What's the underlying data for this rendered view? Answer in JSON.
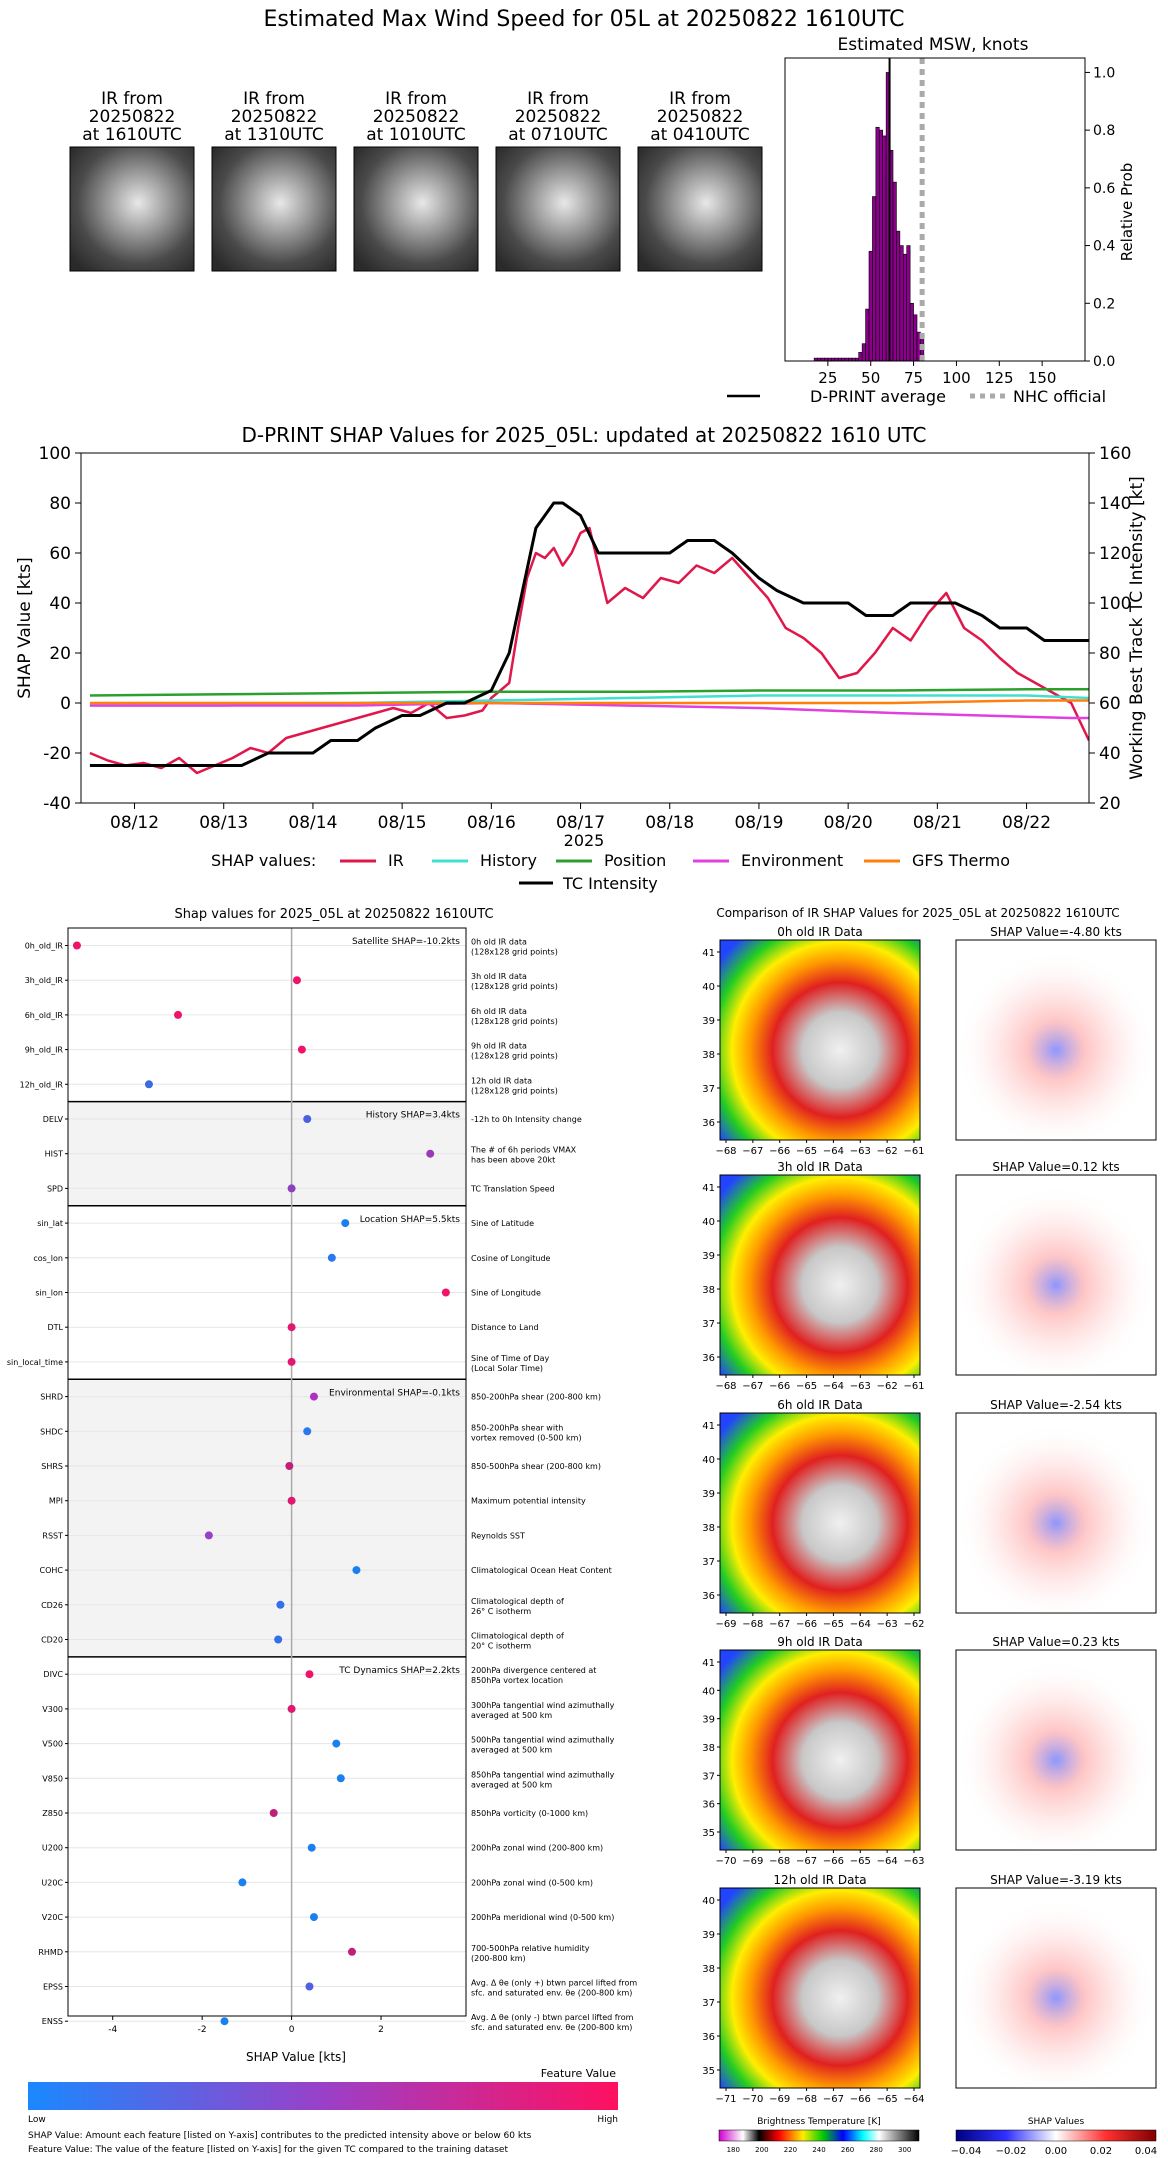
{
  "header": {
    "title": "Estimated Max Wind Speed for 05L at 20250822 1610UTC"
  },
  "ir_thumbnails": [
    {
      "line1": "IR from",
      "line2": "20250822",
      "line3": "at 1610UTC"
    },
    {
      "line1": "IR from",
      "line2": "20250822",
      "line3": "at 1310UTC"
    },
    {
      "line1": "IR from",
      "line2": "20250822",
      "line3": "at 1010UTC"
    },
    {
      "line1": "IR from",
      "line2": "20250822",
      "line3": "at 0710UTC"
    },
    {
      "line1": "IR from",
      "line2": "20250822",
      "line3": "at 0410UTC"
    }
  ],
  "chart_data": [
    {
      "type": "bar",
      "title": "Estimated MSW, knots",
      "ylabel": "Relative Prob",
      "xlim": [
        0,
        175
      ],
      "ylim": [
        0,
        1.05
      ],
      "xticks": [
        "25",
        "50",
        "75",
        "100",
        "125",
        "150"
      ],
      "yticks": [
        "0.0",
        "0.2",
        "0.4",
        "0.6",
        "0.8",
        "1.0"
      ],
      "bin_width": 2,
      "bins_x": [
        18,
        20,
        22,
        24,
        26,
        28,
        30,
        32,
        34,
        36,
        38,
        40,
        42,
        44,
        46,
        48,
        50,
        52,
        54,
        56,
        58,
        60,
        62,
        64,
        66,
        68,
        70,
        72,
        74,
        76,
        78,
        80
      ],
      "bins_y": [
        0.01,
        0.01,
        0.01,
        0.01,
        0.01,
        0.01,
        0.01,
        0.01,
        0.01,
        0.01,
        0.01,
        0.01,
        0.01,
        0.03,
        0.06,
        0.18,
        0.38,
        0.57,
        0.81,
        0.8,
        0.78,
        1.0,
        0.73,
        0.62,
        0.45,
        0.4,
        0.37,
        0.4,
        0.2,
        0.16,
        0.1,
        0.09
      ],
      "dprint_average": 61,
      "nhc_official": 80,
      "legend": [
        "D-PRINT average",
        "NHC official"
      ],
      "colors": {
        "bars": "#8b008b",
        "average": "#000000",
        "nhc": "#aaaaaa"
      }
    },
    {
      "type": "line",
      "title": "D-PRINT SHAP Values for 2025_05L: updated at 20250822 1610 UTC",
      "xlabel": "2025",
      "ylabel": "SHAP Value [kts]",
      "y2label": "Working Best Track TC Intensity [kt]",
      "ylim": [
        -40,
        100
      ],
      "y2lim": [
        20,
        160
      ],
      "xlim": [
        11.4,
        22.7
      ],
      "xticks": [
        "08/12",
        "08/13",
        "08/14",
        "08/15",
        "08/16",
        "08/17",
        "08/18",
        "08/19",
        "08/20",
        "08/21",
        "08/22"
      ],
      "yticks": [
        "-40",
        "-20",
        "0",
        "20",
        "40",
        "60",
        "80",
        "100"
      ],
      "y2ticks": [
        "20",
        "40",
        "60",
        "80",
        "100",
        "120",
        "140",
        "160"
      ],
      "legend_prefix": "SHAP values:",
      "series": [
        {
          "name": "IR",
          "color": "#e0174a",
          "x": [
            11.5,
            11.7,
            11.9,
            12.1,
            12.3,
            12.5,
            12.7,
            12.9,
            13.1,
            13.3,
            13.5,
            13.7,
            13.9,
            14.1,
            14.3,
            14.5,
            14.7,
            14.9,
            15.1,
            15.3,
            15.5,
            15.7,
            15.9,
            16.0,
            16.1,
            16.2,
            16.3,
            16.4,
            16.5,
            16.6,
            16.7,
            16.8,
            16.9,
            17.0,
            17.1,
            17.2,
            17.3,
            17.5,
            17.7,
            17.9,
            18.1,
            18.3,
            18.5,
            18.7,
            18.9,
            19.1,
            19.3,
            19.5,
            19.7,
            19.9,
            20.1,
            20.3,
            20.5,
            20.7,
            20.9,
            21.1,
            21.3,
            21.5,
            21.7,
            21.9,
            22.1,
            22.3,
            22.5,
            22.7
          ],
          "y": [
            -20,
            -23,
            -25,
            -24,
            -26,
            -22,
            -28,
            -25,
            -22,
            -18,
            -20,
            -14,
            -12,
            -10,
            -8,
            -6,
            -4,
            -2,
            -4,
            0,
            -6,
            -5,
            -3,
            2,
            5,
            8,
            30,
            50,
            60,
            58,
            62,
            55,
            60,
            68,
            70,
            55,
            40,
            46,
            42,
            50,
            48,
            55,
            52,
            58,
            50,
            42,
            30,
            26,
            20,
            10,
            12,
            20,
            30,
            25,
            36,
            44,
            30,
            25,
            18,
            12,
            8,
            4,
            0,
            -15
          ]
        },
        {
          "name": "History",
          "color": "#40e0d0",
          "x": [
            11.5,
            13,
            14.5,
            16,
            17.5,
            19,
            20.5,
            22,
            22.7
          ],
          "y": [
            -1,
            -1,
            0,
            1,
            2,
            3,
            3,
            3,
            2
          ]
        },
        {
          "name": "Position",
          "color": "#2ca02c",
          "x": [
            11.5,
            13,
            14.5,
            16,
            17.5,
            19,
            20.5,
            22,
            22.7
          ],
          "y": [
            3,
            3.5,
            4,
            4.5,
            4.5,
            5,
            5,
            5.5,
            5.5
          ]
        },
        {
          "name": "Environment",
          "color": "#e040e0",
          "x": [
            11.5,
            13,
            14.5,
            16,
            17.5,
            19,
            20.5,
            21.5,
            22.5,
            22.7
          ],
          "y": [
            -1,
            -1,
            -1,
            0,
            -1,
            -2,
            -4,
            -5,
            -6,
            -6
          ]
        },
        {
          "name": "GFS Thermo",
          "color": "#ff7f0e",
          "x": [
            11.5,
            13,
            14.5,
            16,
            17.5,
            19,
            20.5,
            22,
            22.7
          ],
          "y": [
            0,
            0,
            0,
            0,
            0,
            0,
            0,
            1,
            1
          ]
        },
        {
          "name": "TC Intensity",
          "color": "#000000",
          "axis": "y2",
          "x": [
            11.5,
            12,
            12.5,
            13,
            13.2,
            13.5,
            14,
            14.2,
            14.5,
            14.7,
            15,
            15.2,
            15.5,
            15.7,
            16,
            16.2,
            16.5,
            16.7,
            16.8,
            17,
            17.2,
            17.5,
            17.7,
            18,
            18.2,
            18.5,
            18.7,
            19,
            19.2,
            19.5,
            19.7,
            20,
            20.2,
            20.5,
            20.7,
            21,
            21.2,
            21.5,
            21.7,
            22,
            22.2,
            22.5,
            22.7
          ],
          "y": [
            35,
            35,
            35,
            35,
            35,
            40,
            40,
            45,
            45,
            50,
            55,
            55,
            60,
            60,
            65,
            80,
            130,
            140,
            140,
            135,
            120,
            120,
            120,
            120,
            125,
            125,
            120,
            110,
            105,
            100,
            100,
            100,
            95,
            95,
            100,
            100,
            100,
            95,
            90,
            90,
            85,
            85,
            85
          ]
        }
      ]
    },
    {
      "type": "scatter",
      "title": "Shap values for 2025_05L at 20250822 1610UTC",
      "xlabel": "SHAP Value [kts]",
      "xlim": [
        -5,
        3.9
      ],
      "xticks": [
        "-4",
        "-2",
        "0",
        "2"
      ],
      "groups": [
        {
          "label": "Satellite SHAP=-10.2kts",
          "features": [
            "0h_old_IR",
            "3h_old_IR",
            "6h_old_IR",
            "9h_old_IR",
            "12h_old_IR"
          ]
        },
        {
          "label": "History SHAP=3.4kts",
          "features": [
            "DELV",
            "HIST",
            "SPD"
          ]
        },
        {
          "label": "Location SHAP=5.5kts",
          "features": [
            "sin_lat",
            "cos_lon",
            "sin_lon",
            "DTL",
            "sin_local_time"
          ]
        },
        {
          "label": "Environmental SHAP=-0.1kts",
          "features": [
            "SHRD",
            "SHDC",
            "SHRS",
            "MPI",
            "RSST",
            "COHC",
            "CD26",
            "CD20"
          ]
        },
        {
          "label": "TC Dynamics SHAP=2.2kts",
          "features": [
            "DIVC",
            "V300",
            "V500",
            "V850",
            "Z850",
            "U200",
            "U20C",
            "V20C",
            "RHMD",
            "EPSS",
            "ENSS"
          ]
        }
      ],
      "points": [
        {
          "feature": "0h_old_IR",
          "shap": -4.8,
          "color": "#f0136a",
          "desc": [
            "0h old IR data",
            "(128x128 grid points)"
          ]
        },
        {
          "feature": "3h_old_IR",
          "shap": 0.12,
          "color": "#f0136a",
          "desc": [
            "3h old IR data",
            "(128x128 grid points)"
          ]
        },
        {
          "feature": "6h_old_IR",
          "shap": -2.54,
          "color": "#f0136a",
          "desc": [
            "6h old IR data",
            "(128x128 grid points)"
          ]
        },
        {
          "feature": "9h_old_IR",
          "shap": 0.23,
          "color": "#f0136a",
          "desc": [
            "9h old IR data",
            "(128x128 grid points)"
          ]
        },
        {
          "feature": "12h_old_IR",
          "shap": -3.19,
          "color": "#3a6be0",
          "desc": [
            "12h old IR data",
            "(128x128 grid points)"
          ]
        },
        {
          "feature": "DELV",
          "shap": 0.35,
          "color": "#4a60e0",
          "desc": [
            "-12h to 0h Intensity change"
          ]
        },
        {
          "feature": "HIST",
          "shap": 3.1,
          "color": "#9a3ab8",
          "desc": [
            "The # of 6h periods VMAX",
            "has been above 20kt"
          ]
        },
        {
          "feature": "SPD",
          "shap": 0.0,
          "color": "#8a40c0",
          "desc": [
            "TC Translation Speed"
          ]
        },
        {
          "feature": "sin_lat",
          "shap": 1.2,
          "color": "#1a80f0",
          "desc": [
            "Sine of Latitude"
          ]
        },
        {
          "feature": "cos_lon",
          "shap": 0.9,
          "color": "#2a78ee",
          "desc": [
            "Cosine of Longitude"
          ]
        },
        {
          "feature": "sin_lon",
          "shap": 3.45,
          "color": "#f0136a",
          "desc": [
            "Sine of Longitude"
          ]
        },
        {
          "feature": "DTL",
          "shap": 0.0,
          "color": "#e01870",
          "desc": [
            "Distance to Land"
          ]
        },
        {
          "feature": "sin_local_time",
          "shap": 0.0,
          "color": "#e01870",
          "desc": [
            "Sine of Time of Day",
            "(Local Solar Time)"
          ]
        },
        {
          "feature": "SHRD",
          "shap": 0.5,
          "color": "#b030c0",
          "desc": [
            "850-200hPa shear (200-800 km)"
          ]
        },
        {
          "feature": "SHDC",
          "shap": 0.35,
          "color": "#2a78ee",
          "desc": [
            "850-200hPa shear with",
            "vortex removed (0-500 km)"
          ]
        },
        {
          "feature": "SHRS",
          "shap": -0.05,
          "color": "#c0207a",
          "desc": [
            "850-500hPa shear (200-800 km)"
          ]
        },
        {
          "feature": "MPI",
          "shap": 0.0,
          "color": "#e01870",
          "desc": [
            "Maximum potential intensity"
          ]
        },
        {
          "feature": "RSST",
          "shap": -1.85,
          "color": "#9a40c8",
          "desc": [
            "Reynolds SST"
          ]
        },
        {
          "feature": "COHC",
          "shap": 1.45,
          "color": "#1a80f0",
          "desc": [
            "Climatological Ocean Heat Content"
          ]
        },
        {
          "feature": "CD26",
          "shap": -0.25,
          "color": "#3070e8",
          "desc": [
            "Climatological depth of",
            "26° C isotherm"
          ]
        },
        {
          "feature": "CD20",
          "shap": -0.3,
          "color": "#3070e8",
          "desc": [
            "Climatological depth of",
            "20° C isotherm"
          ]
        },
        {
          "feature": "DIVC",
          "shap": 0.4,
          "color": "#f0136a",
          "desc": [
            "200hPa divergence centered at",
            "850hPa vortex location"
          ]
        },
        {
          "feature": "V300",
          "shap": 0.0,
          "color": "#e01870",
          "desc": [
            "300hPa tangential wind azimuthally",
            "averaged at 500 km"
          ]
        },
        {
          "feature": "V500",
          "shap": 1.0,
          "color": "#1a80f0",
          "desc": [
            "500hPa tangential wind azimuthally",
            "averaged at 500 km"
          ]
        },
        {
          "feature": "V850",
          "shap": 1.1,
          "color": "#1a80f0",
          "desc": [
            "850hPa tangential wind azimuthally",
            "averaged at 500 km"
          ]
        },
        {
          "feature": "Z850",
          "shap": -0.4,
          "color": "#c0207a",
          "desc": [
            "850hPa vorticity (0-1000 km)"
          ]
        },
        {
          "feature": "U200",
          "shap": 0.45,
          "color": "#1a80f0",
          "desc": [
            "200hPa zonal wind (200-800 km)"
          ]
        },
        {
          "feature": "U20C",
          "shap": -1.1,
          "color": "#1a80f0",
          "desc": [
            "200hPa zonal wind (0-500 km)"
          ]
        },
        {
          "feature": "V20C",
          "shap": 0.5,
          "color": "#1a80f0",
          "desc": [
            "200hPa meridional wind (0-500 km)"
          ]
        },
        {
          "feature": "RHMD",
          "shap": 1.35,
          "color": "#c0207a",
          "desc": [
            "700-500hPa relative humidity",
            "(200-800 km)"
          ]
        },
        {
          "feature": "EPSS",
          "shap": 0.4,
          "color": "#5060e0",
          "desc": [
            "Avg. Δ θe (only +) btwn parcel lifted from",
            "sfc. and saturated env. θe (200-800 km)"
          ]
        },
        {
          "feature": "ENSS",
          "shap": -1.5,
          "color": "#1a80f0",
          "desc": [
            "Avg. Δ θe (only -) btwn parcel lifted from",
            "sfc. and saturated env. θe (200-800 km)"
          ]
        }
      ]
    }
  ],
  "feature_value_bar": {
    "title": "Feature Value",
    "low": "Low",
    "high": "High",
    "colors": {
      "low": "#1a88ff",
      "high": "#ff1060"
    }
  },
  "footnotes": {
    "line1": "SHAP Value: Amount each feature [listed on Y-axis] contributes to the predicted intensity above or below 60 kts",
    "line2": "Feature Value: The value of the feature [listed on Y-axis] for the given TC compared to the training dataset"
  },
  "ir_comparison": {
    "title": "Comparison of IR SHAP Values for 2025_05L at 20250822 1610UTC",
    "rows": [
      {
        "ir_title": "0h old IR Data",
        "shap_title": "SHAP Value=-4.80 kts",
        "xticks": [
          "−68",
          "−67",
          "−66",
          "−65",
          "−64",
          "−63",
          "−62",
          "−61"
        ],
        "yticks": [
          "41",
          "40",
          "39",
          "38",
          "37",
          "36"
        ]
      },
      {
        "ir_title": "3h old IR Data",
        "shap_title": "SHAP Value=0.12 kts",
        "xticks": [
          "−68",
          "−67",
          "−66",
          "−65",
          "−64",
          "−63",
          "−62",
          "−61"
        ],
        "yticks": [
          "41",
          "40",
          "39",
          "38",
          "37",
          "36"
        ]
      },
      {
        "ir_title": "6h old IR Data",
        "shap_title": "SHAP Value=-2.54 kts",
        "xticks": [
          "−69",
          "−68",
          "−67",
          "−66",
          "−65",
          "−64",
          "−63",
          "−62"
        ],
        "yticks": [
          "41",
          "40",
          "39",
          "38",
          "37",
          "36"
        ]
      },
      {
        "ir_title": "9h old IR Data",
        "shap_title": "SHAP Value=0.23 kts",
        "xticks": [
          "−70",
          "−69",
          "−68",
          "−67",
          "−66",
          "−65",
          "−64",
          "−63"
        ],
        "yticks": [
          "41",
          "40",
          "39",
          "38",
          "37",
          "36",
          "35"
        ]
      },
      {
        "ir_title": "12h old IR Data",
        "shap_title": "SHAP Value=-3.19 kts",
        "xticks": [
          "−71",
          "−70",
          "−69",
          "−68",
          "−67",
          "−66",
          "−65",
          "−64"
        ],
        "yticks": [
          "40",
          "39",
          "38",
          "37",
          "36",
          "35"
        ]
      }
    ],
    "bt_colorbar": {
      "title": "Brightness Temperature [K]",
      "ticks": [
        "180",
        "200",
        "220",
        "240",
        "260",
        "280",
        "300"
      ]
    },
    "shap_colorbar": {
      "title": "SHAP Values",
      "ticks": [
        "−0.04",
        "−0.02",
        "0.00",
        "0.02",
        "0.04"
      ]
    }
  }
}
